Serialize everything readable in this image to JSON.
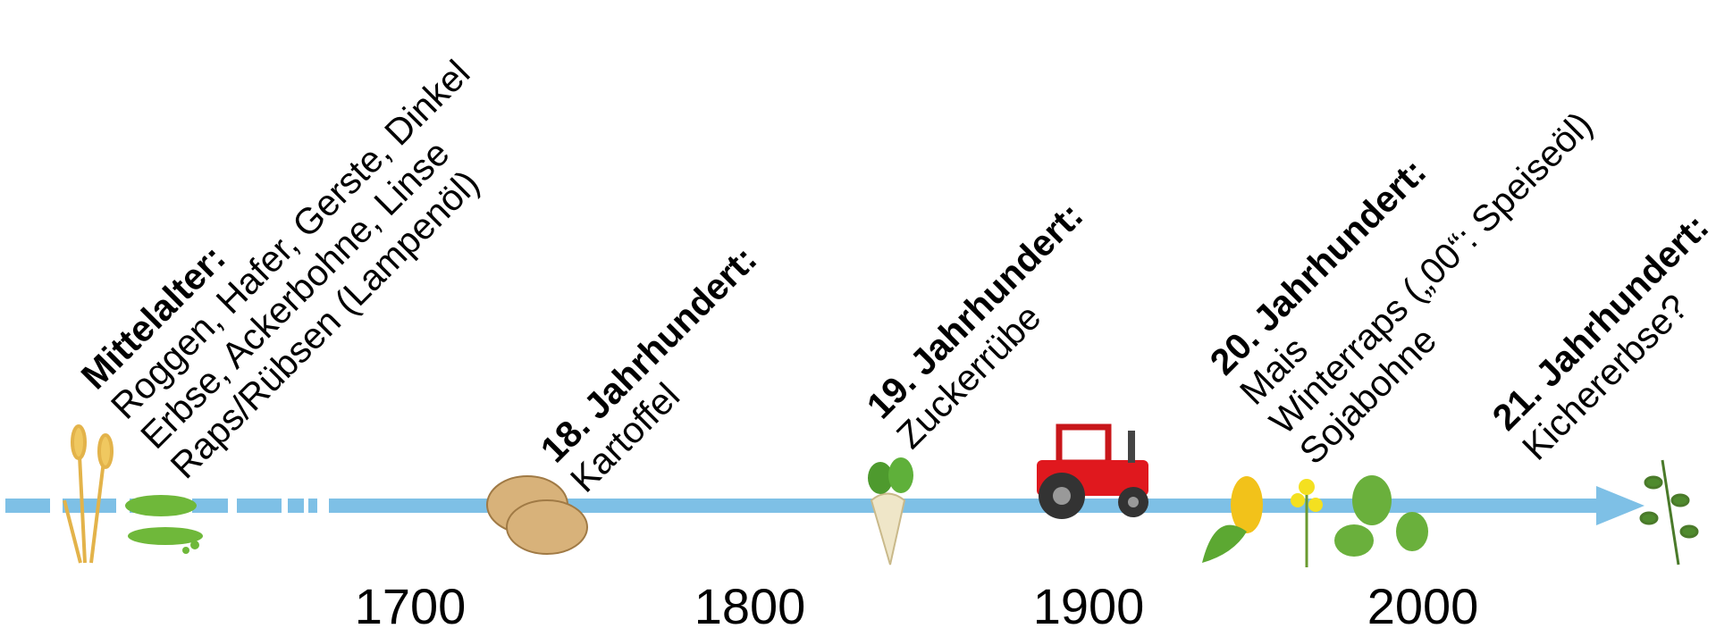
{
  "epochs": [
    {
      "heading": "Mittelalter:",
      "lines": [
        "Roggen, Hafer, Gerste, Dinkel",
        "Erbse, Ackerbohne, Linse",
        "Raps/Rübsen (Lampenöl)"
      ]
    },
    {
      "heading": "18. Jahrhundert:",
      "lines": [
        "Kartoffel"
      ]
    },
    {
      "heading": "19. Jahrhundert:",
      "lines": [
        "Zuckerrübe"
      ]
    },
    {
      "heading": "20. Jahrhundert:",
      "lines": [
        "Mais",
        "Winterraps („00“: Speiseöl)",
        "Sojabohne"
      ]
    },
    {
      "heading": "21. Jahrhundert:",
      "lines": [
        "Kichererbse?"
      ]
    }
  ],
  "years": [
    "1700",
    "1800",
    "1900",
    "2000"
  ]
}
